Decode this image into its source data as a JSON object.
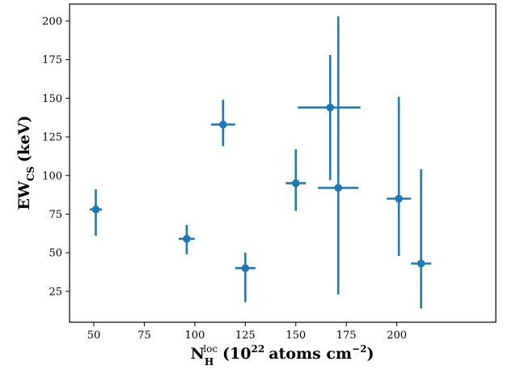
{
  "chart_data": {
    "type": "scatter",
    "title": "",
    "xlabel": {
      "main": "N",
      "sub": "H",
      "sup": "loc",
      "rest": "(10",
      "exp": "22",
      "rest2": "atoms cm",
      "exp2": "−2",
      "close": ")"
    },
    "ylabel": {
      "main": "EW",
      "sub": "CS",
      "rest": "(keV)"
    },
    "xlim": [
      38,
      249
    ],
    "ylim": [
      5,
      211
    ],
    "xticks": [
      50,
      75,
      100,
      125,
      150,
      175,
      200
    ],
    "yticks": [
      25,
      50,
      75,
      100,
      125,
      150,
      175,
      200
    ],
    "grid": false,
    "color": "#1f77b4",
    "points": [
      {
        "x": 51,
        "y": 78,
        "xerr": [
          3,
          3
        ],
        "yerr": [
          17,
          13
        ]
      },
      {
        "x": 96,
        "y": 59,
        "xerr": [
          4,
          4
        ],
        "yerr": [
          10,
          9
        ]
      },
      {
        "x": 114,
        "y": 133,
        "xerr": [
          6,
          6
        ],
        "yerr": [
          14,
          16
        ]
      },
      {
        "x": 125,
        "y": 40,
        "xerr": [
          5,
          5
        ],
        "yerr": [
          22,
          10
        ]
      },
      {
        "x": 150,
        "y": 95,
        "xerr": [
          5,
          5
        ],
        "yerr": [
          18,
          22
        ]
      },
      {
        "x": 167,
        "y": 144,
        "xerr": [
          16,
          15
        ],
        "yerr": [
          47,
          34
        ]
      },
      {
        "x": 171,
        "y": 92,
        "xerr": [
          10,
          10
        ],
        "yerr": [
          69,
          111
        ]
      },
      {
        "x": 201,
        "y": 85,
        "xerr": [
          6,
          6
        ],
        "yerr": [
          37,
          66
        ]
      },
      {
        "x": 212,
        "y": 43,
        "xerr": [
          5,
          5
        ],
        "yerr": [
          29,
          61
        ]
      }
    ]
  }
}
